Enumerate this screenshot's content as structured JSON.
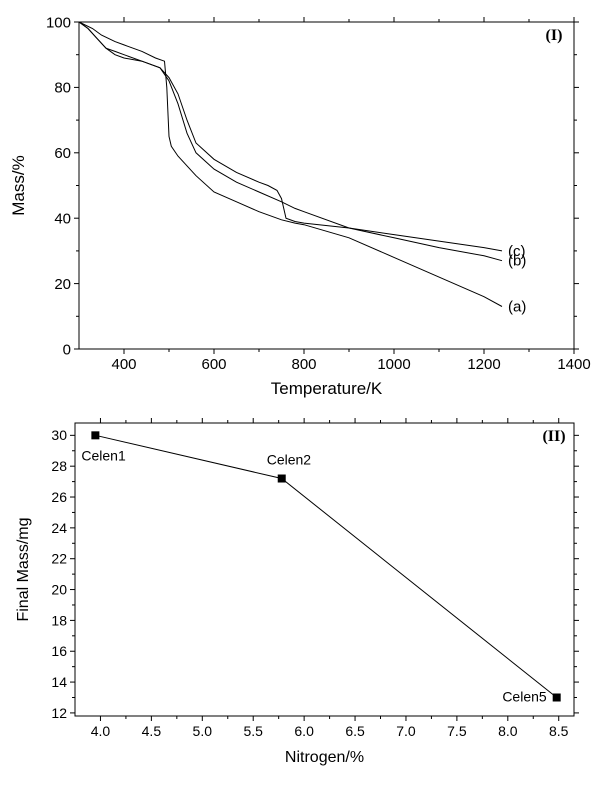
{
  "chart_data": [
    {
      "type": "line",
      "panel_label": "(I)",
      "xlabel": "Temperature/K",
      "ylabel": "Mass/%",
      "xlim": [
        300,
        1400
      ],
      "ylim": [
        0,
        100
      ],
      "xticks": [
        400,
        600,
        800,
        1000,
        1200,
        1400
      ],
      "yticks": [
        0,
        20,
        40,
        60,
        80,
        100
      ],
      "grid": false,
      "series": [
        {
          "name": "(a)",
          "x": [
            300,
            330,
            350,
            380,
            400,
            440,
            470,
            490,
            495,
            500,
            505,
            520,
            560,
            600,
            650,
            700,
            750,
            780,
            800,
            900,
            1000,
            1100,
            1200,
            1240
          ],
          "y": [
            100,
            98,
            96,
            94,
            93,
            91,
            89,
            88,
            80,
            65,
            62,
            59,
            53,
            48,
            45,
            42,
            39.5,
            38.5,
            38,
            34,
            28,
            22,
            16,
            13
          ]
        },
        {
          "name": "(b)",
          "x": [
            300,
            320,
            340,
            360,
            380,
            400,
            440,
            480,
            500,
            520,
            540,
            560,
            600,
            650,
            700,
            750,
            780,
            800,
            900,
            1000,
            1100,
            1200,
            1240
          ],
          "y": [
            100,
            98,
            95,
            92,
            91,
            90,
            88,
            86,
            82,
            75,
            66,
            60,
            55,
            51,
            48,
            45,
            43,
            42,
            37,
            34,
            31,
            28.5,
            27
          ]
        },
        {
          "name": "(c)",
          "x": [
            300,
            320,
            340,
            360,
            380,
            400,
            440,
            480,
            500,
            520,
            540,
            560,
            600,
            650,
            700,
            720,
            740,
            750,
            760,
            780,
            800,
            900,
            1000,
            1100,
            1200,
            1240
          ],
          "y": [
            100,
            98,
            95,
            92,
            90,
            89,
            88,
            86,
            83,
            78,
            70,
            63,
            58,
            54,
            51,
            50,
            48.5,
            46,
            40,
            39,
            38.5,
            37,
            35,
            33,
            31,
            30
          ]
        }
      ]
    },
    {
      "type": "line",
      "panel_label": "(II)",
      "xlabel": "Nitrogen/%",
      "ylabel": "Final Mass/mg",
      "xlim": [
        3.75,
        8.65
      ],
      "ylim": [
        11.8,
        30.8
      ],
      "xticks": [
        4.0,
        4.5,
        5.0,
        5.5,
        6.0,
        6.5,
        7.0,
        7.5,
        8.0,
        8.5
      ],
      "yticks": [
        12,
        14,
        16,
        18,
        20,
        22,
        24,
        26,
        28,
        30
      ],
      "grid": false,
      "points": [
        {
          "label": "Celen1",
          "x": 3.95,
          "y": 30.0
        },
        {
          "label": "Celen2",
          "x": 5.78,
          "y": 27.2
        },
        {
          "label": "Celen5",
          "x": 8.48,
          "y": 13.0
        }
      ]
    }
  ]
}
